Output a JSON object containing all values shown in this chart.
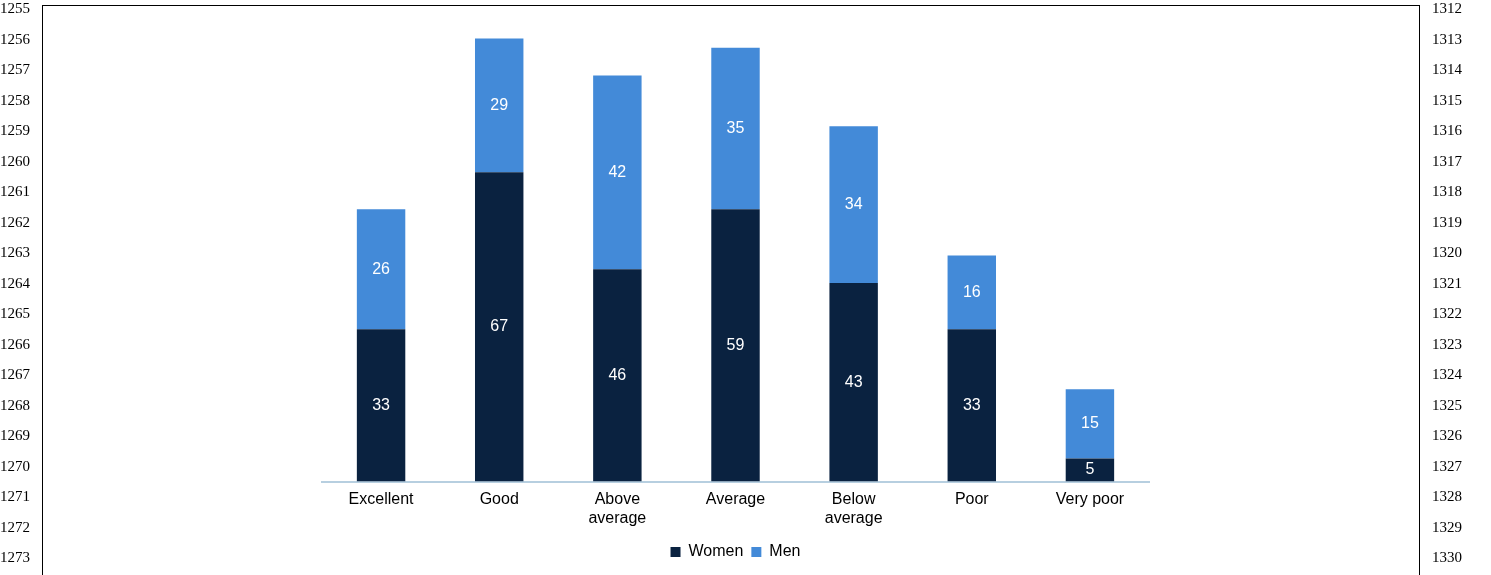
{
  "chart_data": {
    "type": "bar",
    "stacked": true,
    "data_labels": true,
    "legend": "bottom",
    "grid": false,
    "categories": [
      "Excellent",
      "Good",
      "Above average",
      "Average",
      "Below average",
      "Poor",
      "Very poor"
    ],
    "series": [
      {
        "name": "Women",
        "color": "#0a2240",
        "values": [
          33,
          67,
          46,
          59,
          43,
          33,
          5
        ]
      },
      {
        "name": "Men",
        "color": "#438ad8",
        "values": [
          26,
          29,
          42,
          35,
          34,
          16,
          15
        ]
      }
    ],
    "annotations": [
      "1255",
      "1256",
      "1257",
      "1258",
      "1259",
      "1260",
      "1261",
      "1262",
      "1263",
      "1264",
      "1265",
      "1266",
      "1267",
      "1268",
      "1269",
      "1270",
      "1271",
      "1272",
      "1273",
      "1312",
      "1313",
      "1314",
      "1315",
      "1316",
      "1317",
      "1318",
      "1319",
      "1320",
      "1321",
      "1322",
      "1323",
      "1324",
      "1325",
      "1326",
      "1327",
      "1328",
      "1329",
      "1330"
    ]
  }
}
